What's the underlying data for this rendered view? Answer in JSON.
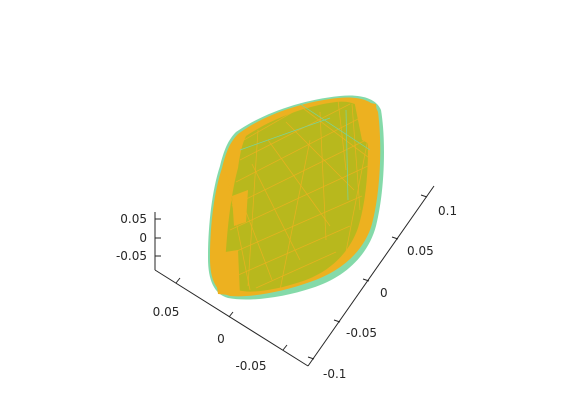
{
  "chart_data": {
    "type": "3d-surface",
    "title": "",
    "xlabel": "",
    "ylabel": "",
    "zlabel": "",
    "grid": false,
    "legend": "none",
    "axes": {
      "x": {
        "ticks": [
          0.05,
          0,
          -0.05
        ],
        "labels": [
          "0.05",
          "0",
          "-0.05"
        ],
        "range": [
          -0.08,
          0.08
        ]
      },
      "y": {
        "ticks": [
          0.1,
          0.05,
          0,
          -0.05,
          -0.1
        ],
        "labels": [
          "0.1",
          "0.05",
          "0",
          "-0.05",
          "-0.1"
        ],
        "range": [
          -0.12,
          0.12
        ]
      },
      "z": {
        "ticks": [
          0.05,
          0,
          -0.05
        ],
        "labels": [
          "0.05",
          "0",
          "-0.05"
        ],
        "range": [
          -0.07,
          0.07
        ]
      }
    },
    "series": [
      {
        "color": "#EDB120"
      },
      {
        "color": "#77D6A0"
      },
      {
        "color": "#B5B81E"
      }
    ]
  }
}
